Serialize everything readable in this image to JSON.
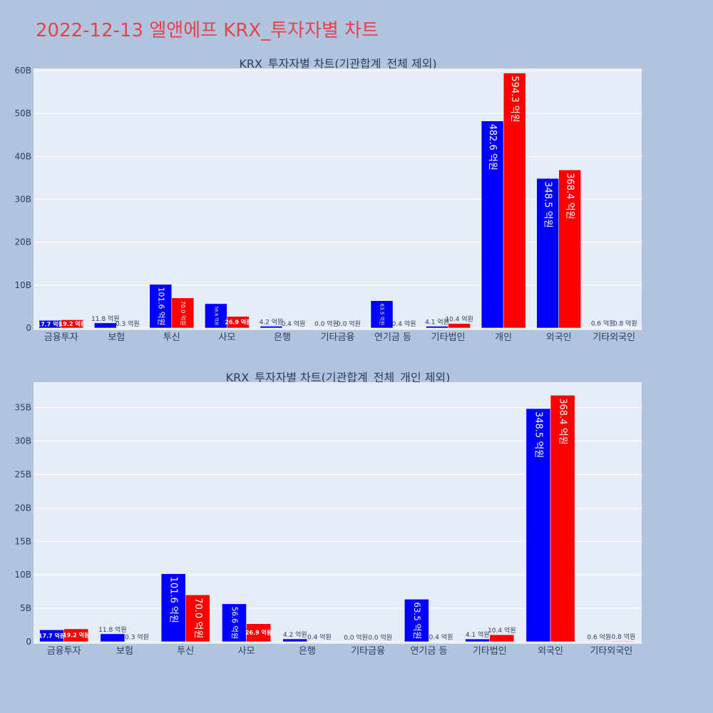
{
  "page": {
    "title": "2022-12-13 엘앤에프 KRX_투자자별 차트"
  },
  "colors": {
    "background": "#b0c4de",
    "plot_background": "#e5ecf6",
    "title": "#e8414e",
    "series_a": "#0000ff",
    "series_b": "#ff0000",
    "grid": "#ffffff",
    "text": "#2a3f5f"
  },
  "chart_data": [
    {
      "type": "bar",
      "title": "KRX_투자자별 차트(기관합계_전체 제외)",
      "xlabel": "",
      "ylabel": "",
      "ylim": [
        0,
        60.5
      ],
      "yticks": [
        0,
        10,
        20,
        30,
        40,
        50,
        60
      ],
      "ytick_labels": [
        "0",
        "10B",
        "20B",
        "30B",
        "40B",
        "50B",
        "60B"
      ],
      "grid": true,
      "categories": [
        "금융투자",
        "보험",
        "투신",
        "사모",
        "은행",
        "기타금융",
        "연기금 등",
        "기타법인",
        "개인",
        "외국인",
        "기타외국인"
      ],
      "series": [
        {
          "color": "#0000ff",
          "values": [
            1.77,
            1.18,
            10.16,
            5.66,
            0.42,
            0.0,
            6.35,
            0.41,
            48.26,
            34.85,
            0.06
          ],
          "labels": [
            "17.7 억원",
            "11.8 억원",
            "101.6 억원",
            "56.6 억원",
            "4.2 억원",
            "0.0 억원",
            "63.5 억원",
            "4.1 억원",
            "482.6 억원",
            "348.5 억원",
            "0.6 억원"
          ]
        },
        {
          "color": "#ff0000",
          "values": [
            1.92,
            0.03,
            7.0,
            2.69,
            0.04,
            0.0,
            0.04,
            1.04,
            59.43,
            36.84,
            0.08
          ],
          "labels": [
            "19.2 억원",
            "0.3 억원",
            "70.0 억원",
            "26.9 억원",
            "0.4 억원",
            "0.0 억원",
            "0.4 억원",
            "10.4 억원",
            "594.3 억원",
            "368.4 억원",
            "0.8 억원"
          ]
        }
      ]
    },
    {
      "type": "bar",
      "title": "KRX_투자자별 차트(기관합계_전체_개인 제외)",
      "xlabel": "",
      "ylabel": "",
      "ylim": [
        0,
        38.8
      ],
      "yticks": [
        0,
        5,
        10,
        15,
        20,
        25,
        30,
        35
      ],
      "ytick_labels": [
        "0",
        "5B",
        "10B",
        "15B",
        "20B",
        "25B",
        "30B",
        "35B"
      ],
      "grid": true,
      "categories": [
        "금융투자",
        "보험",
        "투신",
        "사모",
        "은행",
        "기타금융",
        "연기금 등",
        "기타법인",
        "외국인",
        "기타외국인"
      ],
      "series": [
        {
          "color": "#0000ff",
          "values": [
            1.77,
            1.18,
            10.16,
            5.66,
            0.42,
            0.0,
            6.35,
            0.41,
            34.85,
            0.06
          ],
          "labels": [
            "17.7 억원",
            "11.8 억원",
            "101.6 억원",
            "56.6 억원",
            "4.2 억원",
            "0.0 억원",
            "63.5 억원",
            "4.1 억원",
            "348.5 억원",
            "0.6 억원"
          ]
        },
        {
          "color": "#ff0000",
          "values": [
            1.92,
            0.03,
            7.0,
            2.69,
            0.04,
            0.0,
            0.04,
            1.04,
            36.84,
            0.08
          ],
          "labels": [
            "19.2 억원",
            "0.3 억원",
            "70.0 억원",
            "26.9 억원",
            "0.4 억원",
            "0.0 억원",
            "0.4 억원",
            "10.4 억원",
            "368.4 억원",
            "0.8 억원"
          ]
        }
      ]
    }
  ]
}
